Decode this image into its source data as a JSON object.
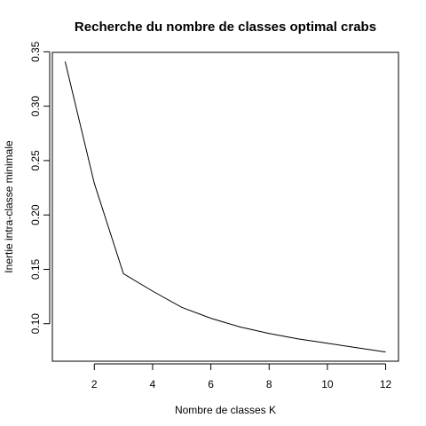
{
  "chart_data": {
    "type": "line",
    "title": "Recherche du nombre de classes optimal crabs",
    "xlabel": "Nombre de classes K",
    "ylabel": "Inertie intra-classe minimale",
    "x": [
      1,
      2,
      3,
      4,
      5,
      6,
      7,
      8,
      9,
      10,
      11,
      12
    ],
    "series": [
      {
        "values": [
          0.341,
          0.229,
          0.146,
          0.13,
          0.115,
          0.105,
          0.097,
          0.091,
          0.086,
          0.082,
          0.078,
          0.074
        ]
      }
    ],
    "xlim": [
      0.56,
      12.44
    ],
    "ylim": [
      0.0655,
      0.3495
    ],
    "x_ticks": [
      2,
      4,
      6,
      8,
      10,
      12
    ],
    "x_tick_labels": [
      "2",
      "4",
      "6",
      "8",
      "10",
      "12"
    ],
    "y_ticks": [
      0.1,
      0.15,
      0.2,
      0.25,
      0.3,
      0.35
    ],
    "y_tick_labels": [
      "0.10",
      "0.15",
      "0.20",
      "0.25",
      "0.30",
      "0.35"
    ],
    "grid": false,
    "legend": "none",
    "line_color": "#000000"
  }
}
